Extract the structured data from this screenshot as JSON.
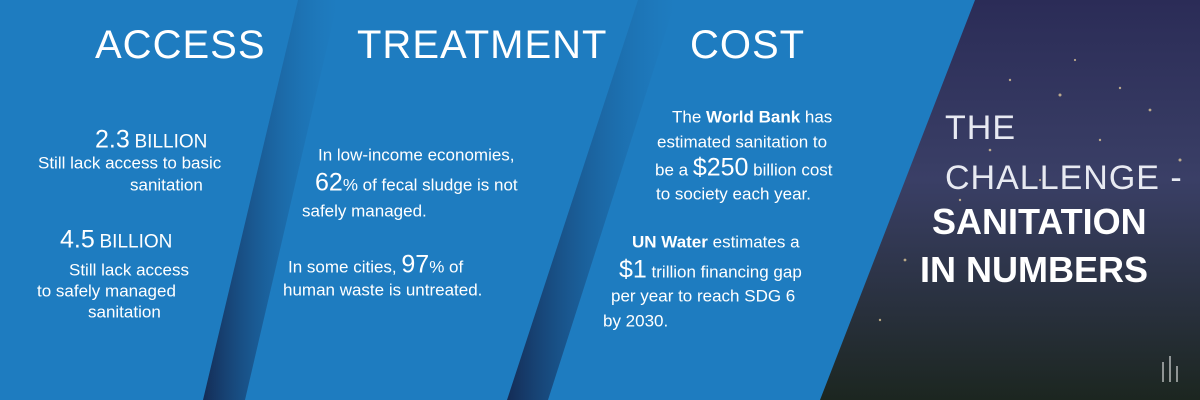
{
  "access": {
    "title": "ACCESS",
    "stats": [
      {
        "figure": "2.3",
        "unit": "BILLION",
        "lines": [
          "Still lack access to basic",
          "sanitation"
        ]
      },
      {
        "figure": "4.5",
        "unit": "BILLION",
        "lines": [
          "Still lack access",
          "to safely managed",
          "sanitation"
        ]
      }
    ]
  },
  "treatment": {
    "title": "TREATMENT",
    "paragraphs": [
      [
        [
          "In low-income economies,"
        ],
        [
          {
            "big": "62"
          },
          "% of fecal sludge is not"
        ],
        [
          "safely managed."
        ]
      ],
      [
        [
          "In some cities, ",
          {
            "big": "97"
          },
          "% of"
        ],
        [
          "human waste is untreated."
        ]
      ]
    ]
  },
  "cost": {
    "title": "COST",
    "paragraphs": [
      [
        [
          "The ",
          {
            "bold": "World Bank"
          },
          " has"
        ],
        [
          "estimated sanitation to"
        ],
        [
          "be a ",
          {
            "big": "$250"
          },
          " billion cost"
        ],
        [
          "to society each year."
        ]
      ],
      [
        [
          {
            "bold": "UN Water"
          },
          " estimates a"
        ],
        [
          {
            "big": "$1"
          },
          " trillion financing gap"
        ],
        [
          "per year to reach SDG 6"
        ],
        [
          "by 2030."
        ]
      ]
    ]
  },
  "heading": {
    "light": [
      "THE",
      "CHALLENGE -"
    ],
    "bold": [
      "SANITATION",
      "IN NUMBERS"
    ]
  }
}
